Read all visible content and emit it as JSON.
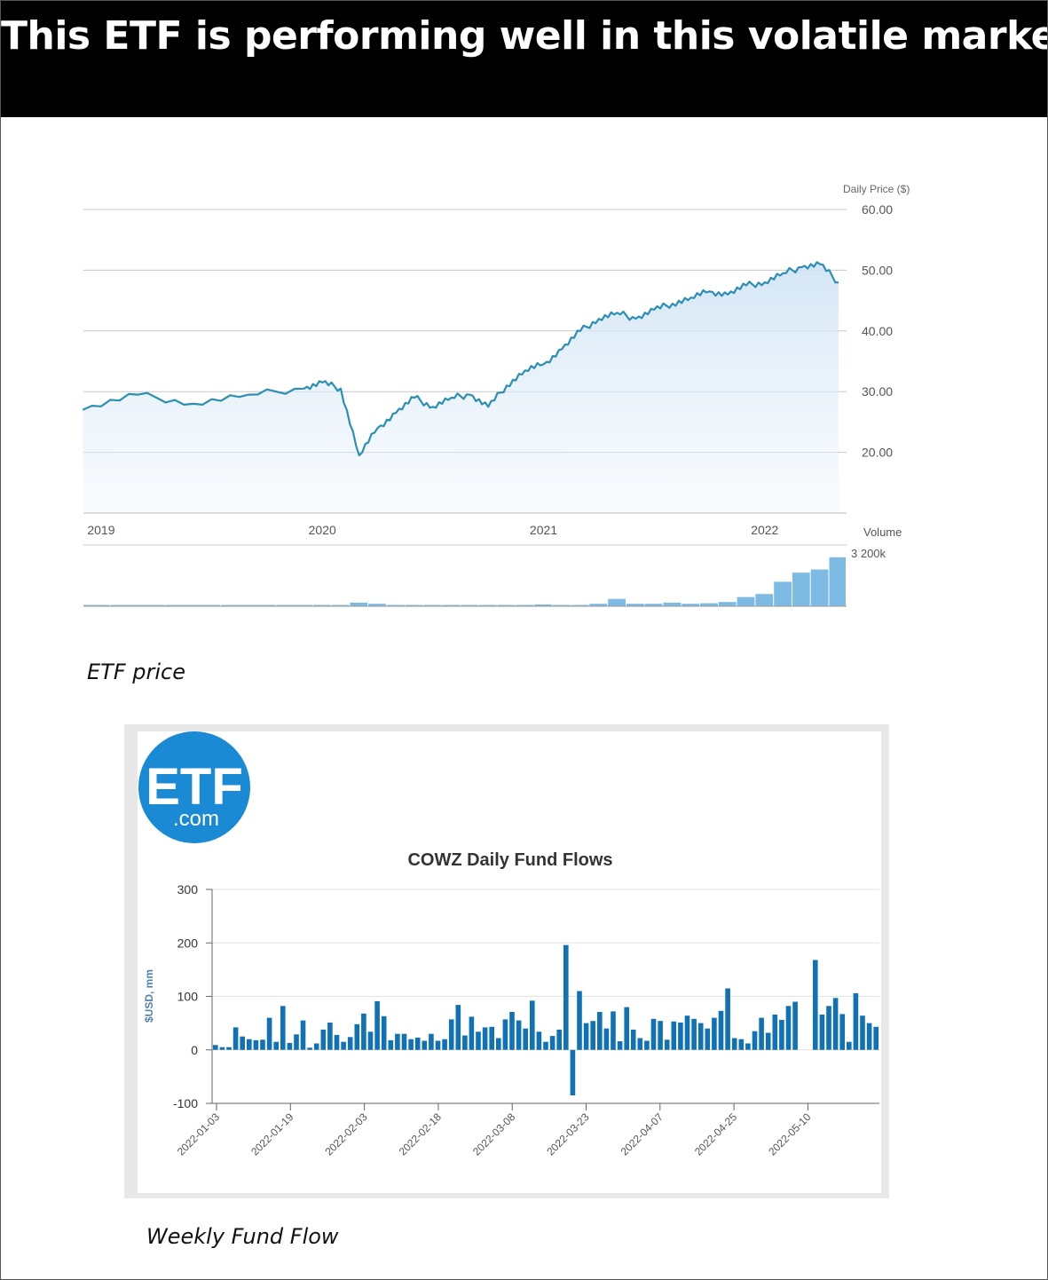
{
  "headline": "This ETF is performing well in this volatile market",
  "captions": {
    "price": "ETF price",
    "flow": "Weekly Fund Flow"
  },
  "logo": {
    "main": "ETF",
    "sub": ".com",
    "color": "#1a8ad4"
  },
  "chart_data": [
    {
      "type": "line",
      "ylabel": "Daily Price ($)",
      "volume_label": "Volume",
      "volume_tick_label": "3 200k",
      "y_ticks": [
        "60.00",
        "50.00",
        "40.00",
        "30.00",
        "20.00"
      ],
      "x_ticks": [
        "2019",
        "2020",
        "2021",
        "2022"
      ],
      "ylim": [
        10,
        60
      ],
      "color": "#2b8fb5",
      "volume_color": "#7dbbe5",
      "grid": true,
      "x": [
        "2018-12",
        "2019-03",
        "2019-06",
        "2019-09",
        "2019-12",
        "2020-01",
        "2020-02",
        "2020-03",
        "2020-04",
        "2020-05",
        "2020-06",
        "2020-07",
        "2020-08",
        "2020-09",
        "2020-10",
        "2020-11",
        "2020-12",
        "2021-01",
        "2021-02",
        "2021-03",
        "2021-04",
        "2021-05",
        "2021-06",
        "2021-07",
        "2021-08",
        "2021-09",
        "2021-10",
        "2021-11",
        "2021-12",
        "2022-01",
        "2022-02",
        "2022-03",
        "2022-04",
        "2022-05"
      ],
      "y": [
        27.0,
        29.5,
        28.0,
        29.5,
        30.5,
        31.5,
        30.5,
        19.5,
        24.0,
        26.5,
        29.0,
        27.5,
        29.0,
        29.5,
        27.5,
        31.0,
        33.5,
        34.5,
        37.0,
        40.0,
        42.0,
        43.0,
        42.0,
        43.5,
        44.5,
        45.5,
        46.5,
        46.0,
        47.5,
        48.0,
        49.5,
        50.5,
        51.0,
        48.0
      ],
      "volume": [
        0.5,
        0.5,
        0.5,
        0.5,
        0.5,
        1,
        1,
        6,
        4,
        1,
        2,
        1,
        2,
        1,
        1,
        1,
        1,
        3,
        1,
        2,
        4,
        12,
        4,
        4,
        6,
        4,
        5,
        7,
        15,
        20,
        40,
        55,
        60,
        80
      ]
    },
    {
      "type": "bar",
      "title": "COWZ Daily Fund Flows",
      "ylabel": "$USD, mm",
      "ylim": [
        -100,
        300
      ],
      "y_ticks": [
        "300",
        "200",
        "100",
        "0",
        "-100"
      ],
      "x_ticks": [
        "2022-01-03",
        "2022-01-19",
        "2022-02-03",
        "2022-02-18",
        "2022-03-08",
        "2022-03-23",
        "2022-04-07",
        "2022-04-25",
        "2022-05-10"
      ],
      "color": "#1071b4",
      "values": [
        9,
        5,
        5,
        42,
        25,
        20,
        18,
        19,
        60,
        15,
        82,
        13,
        29,
        55,
        4,
        12,
        38,
        51,
        28,
        15,
        24,
        48,
        68,
        34,
        91,
        63,
        18,
        30,
        30,
        20,
        23,
        17,
        30,
        17,
        20,
        57,
        84,
        27,
        62,
        34,
        42,
        43,
        22,
        57,
        71,
        55,
        40,
        92,
        34,
        15,
        26,
        38,
        196,
        -85,
        110,
        50,
        54,
        71,
        40,
        72,
        16,
        80,
        38,
        22,
        17,
        58,
        54,
        19,
        53,
        51,
        64,
        58,
        50,
        40,
        60,
        73,
        115,
        22,
        20,
        12,
        35,
        60,
        32,
        66,
        56,
        82,
        90,
        0,
        0,
        168,
        66,
        82,
        97,
        67,
        15,
        106,
        64,
        50,
        43
      ]
    }
  ]
}
